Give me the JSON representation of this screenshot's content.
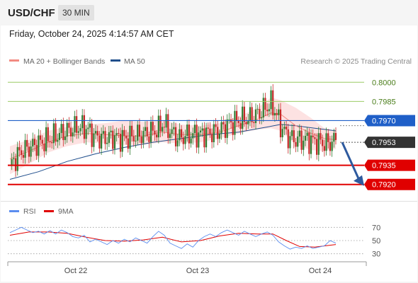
{
  "header": {
    "symbol": "USD/CHF",
    "timeframe": "30 MIN",
    "datetime": "Friday, October 24, 2025 4:14:57 AM CET"
  },
  "legend": {
    "ma20_label": "MA 20 + Bollinger Bands",
    "ma50_label": "MA 50",
    "credit": "Research © 2025 Trading Central",
    "rsi_label": "RSI",
    "rsi_ma_label": "9MA"
  },
  "colors": {
    "ma20": "#f28b82",
    "band_fill": "#fde2e2",
    "ma50": "#1f4e8c",
    "up": "#2e7d32",
    "down": "#c62828",
    "resistance": "#9ccc65",
    "support": "#e00000",
    "pivot": "#1f5fc8",
    "current": "#333333",
    "arrow": "#2e5a9e",
    "rsi": "#5b8def",
    "rsi_ma": "#e00000"
  },
  "chart_data": [
    {
      "type": "candlestick",
      "title": "USD/CHF 30 MIN",
      "x_ticks": [
        "Oct 22",
        "Oct 23",
        "Oct 24"
      ],
      "ylim": [
        0.7911,
        0.8009
      ],
      "levels": [
        {
          "value": 0.8,
          "label": "0.8000",
          "kind": "resistance"
        },
        {
          "value": 0.7985,
          "label": "0.7985",
          "kind": "resistance"
        },
        {
          "value": 0.797,
          "label": "0.7970",
          "kind": "pivot"
        },
        {
          "value": 0.7953,
          "label": "0.7953",
          "kind": "current"
        },
        {
          "value": 0.7935,
          "label": "0.7935",
          "kind": "support"
        },
        {
          "value": 0.792,
          "label": "0.7920",
          "kind": "support"
        }
      ],
      "close_path": [
        [
          0,
          0.7935
        ],
        [
          6,
          0.7946
        ],
        [
          12,
          0.795
        ],
        [
          18,
          0.7954
        ],
        [
          24,
          0.7958
        ],
        [
          30,
          0.7962
        ],
        [
          36,
          0.7965
        ],
        [
          40,
          0.7964
        ],
        [
          44,
          0.7958
        ],
        [
          48,
          0.7956
        ],
        [
          54,
          0.7957
        ],
        [
          60,
          0.7956
        ],
        [
          66,
          0.7958
        ],
        [
          72,
          0.796
        ],
        [
          78,
          0.7963
        ],
        [
          80,
          0.7968
        ],
        [
          84,
          0.7962
        ],
        [
          88,
          0.7956
        ],
        [
          92,
          0.7958
        ],
        [
          98,
          0.7959
        ],
        [
          104,
          0.796
        ],
        [
          110,
          0.7962
        ],
        [
          114,
          0.7967
        ],
        [
          120,
          0.797
        ],
        [
          126,
          0.7972
        ],
        [
          130,
          0.7975
        ],
        [
          134,
          0.798
        ],
        [
          137,
          0.7983
        ],
        [
          139,
          0.7978
        ],
        [
          142,
          0.7966
        ],
        [
          146,
          0.7957
        ],
        [
          150,
          0.7955
        ],
        [
          156,
          0.7955
        ],
        [
          162,
          0.7953
        ],
        [
          167,
          0.7952
        ],
        [
          171,
          0.7955
        ]
      ],
      "ma20": [
        [
          0,
          0.794
        ],
        [
          10,
          0.7946
        ],
        [
          20,
          0.7953
        ],
        [
          30,
          0.7958
        ],
        [
          40,
          0.796
        ],
        [
          50,
          0.7959
        ],
        [
          60,
          0.7958
        ],
        [
          70,
          0.7958
        ],
        [
          80,
          0.7961
        ],
        [
          90,
          0.7959
        ],
        [
          100,
          0.7959
        ],
        [
          110,
          0.7961
        ],
        [
          120,
          0.7966
        ],
        [
          130,
          0.7971
        ],
        [
          137,
          0.7976
        ],
        [
          142,
          0.7975
        ],
        [
          150,
          0.7966
        ],
        [
          158,
          0.796
        ],
        [
          165,
          0.7956
        ],
        [
          171,
          0.7955
        ]
      ],
      "bollinger_upper": [
        [
          0,
          0.795
        ],
        [
          10,
          0.7955
        ],
        [
          20,
          0.7962
        ],
        [
          30,
          0.7965
        ],
        [
          40,
          0.7967
        ],
        [
          50,
          0.7968
        ],
        [
          60,
          0.797
        ],
        [
          70,
          0.7969
        ],
        [
          80,
          0.797
        ],
        [
          90,
          0.7967
        ],
        [
          100,
          0.7966
        ],
        [
          110,
          0.7968
        ],
        [
          120,
          0.7973
        ],
        [
          130,
          0.798
        ],
        [
          137,
          0.7988
        ],
        [
          142,
          0.7986
        ],
        [
          150,
          0.798
        ],
        [
          158,
          0.7972
        ],
        [
          165,
          0.7964
        ],
        [
          171,
          0.7962
        ]
      ],
      "bollinger_lower": [
        [
          0,
          0.7928
        ],
        [
          10,
          0.7936
        ],
        [
          20,
          0.7945
        ],
        [
          30,
          0.795
        ],
        [
          40,
          0.7953
        ],
        [
          50,
          0.7952
        ],
        [
          60,
          0.7951
        ],
        [
          70,
          0.7951
        ],
        [
          80,
          0.7953
        ],
        [
          90,
          0.7952
        ],
        [
          100,
          0.7953
        ],
        [
          110,
          0.7956
        ],
        [
          120,
          0.796
        ],
        [
          130,
          0.7963
        ],
        [
          137,
          0.7964
        ],
        [
          142,
          0.7962
        ],
        [
          150,
          0.7951
        ],
        [
          158,
          0.7947
        ],
        [
          165,
          0.7946
        ],
        [
          171,
          0.7948
        ]
      ],
      "ma50": [
        [
          0,
          0.7924
        ],
        [
          15,
          0.793
        ],
        [
          30,
          0.7938
        ],
        [
          45,
          0.7944
        ],
        [
          60,
          0.7949
        ],
        [
          75,
          0.7953
        ],
        [
          90,
          0.7956
        ],
        [
          105,
          0.7959
        ],
        [
          120,
          0.7961
        ],
        [
          135,
          0.7965
        ],
        [
          142,
          0.7967
        ],
        [
          150,
          0.7966
        ],
        [
          160,
          0.7964
        ],
        [
          171,
          0.7962
        ]
      ],
      "projection": {
        "from": 0.7953,
        "to": 0.792
      }
    },
    {
      "type": "line",
      "title": "RSI",
      "ylim": [
        20,
        80
      ],
      "y_ticks": [
        70,
        50,
        30
      ],
      "series": [
        {
          "name": "RSI",
          "values": [
            [
              0,
              62
            ],
            [
              3,
              66
            ],
            [
              6,
              70
            ],
            [
              9,
              66
            ],
            [
              12,
              62
            ],
            [
              15,
              64
            ],
            [
              18,
              60
            ],
            [
              21,
              65
            ],
            [
              24,
              60
            ],
            [
              27,
              66
            ],
            [
              30,
              62
            ],
            [
              33,
              56
            ],
            [
              36,
              54
            ],
            [
              39,
              58
            ],
            [
              42,
              48
            ],
            [
              45,
              52
            ],
            [
              48,
              48
            ],
            [
              51,
              44
            ],
            [
              54,
              50
            ],
            [
              57,
              46
            ],
            [
              60,
              52
            ],
            [
              63,
              48
            ],
            [
              66,
              54
            ],
            [
              69,
              50
            ],
            [
              72,
              46
            ],
            [
              75,
              56
            ],
            [
              78,
              64
            ],
            [
              81,
              58
            ],
            [
              84,
              46
            ],
            [
              87,
              42
            ],
            [
              90,
              38
            ],
            [
              93,
              45
            ],
            [
              96,
              40
            ],
            [
              99,
              50
            ],
            [
              102,
              56
            ],
            [
              105,
              60
            ],
            [
              108,
              56
            ],
            [
              111,
              62
            ],
            [
              114,
              66
            ],
            [
              117,
              62
            ],
            [
              120,
              58
            ],
            [
              123,
              64
            ],
            [
              126,
              60
            ],
            [
              129,
              56
            ],
            [
              132,
              60
            ],
            [
              135,
              63
            ],
            [
              138,
              58
            ],
            [
              141,
              48
            ],
            [
              144,
              42
            ],
            [
              147,
              37
            ],
            [
              150,
              40
            ],
            [
              153,
              38
            ],
            [
              156,
              42
            ],
            [
              159,
              38
            ],
            [
              162,
              40
            ],
            [
              165,
              42
            ],
            [
              168,
              50
            ],
            [
              171,
              46
            ]
          ]
        },
        {
          "name": "9MA",
          "values": [
            [
              0,
              58
            ],
            [
              10,
              63
            ],
            [
              20,
              63
            ],
            [
              30,
              61
            ],
            [
              40,
              55
            ],
            [
              50,
              50
            ],
            [
              60,
              49
            ],
            [
              70,
              51
            ],
            [
              80,
              55
            ],
            [
              90,
              48
            ],
            [
              100,
              50
            ],
            [
              110,
              57
            ],
            [
              120,
              61
            ],
            [
              130,
              60
            ],
            [
              138,
              60
            ],
            [
              145,
              50
            ],
            [
              152,
              41
            ],
            [
              160,
              40
            ],
            [
              171,
              44
            ]
          ]
        }
      ]
    }
  ]
}
